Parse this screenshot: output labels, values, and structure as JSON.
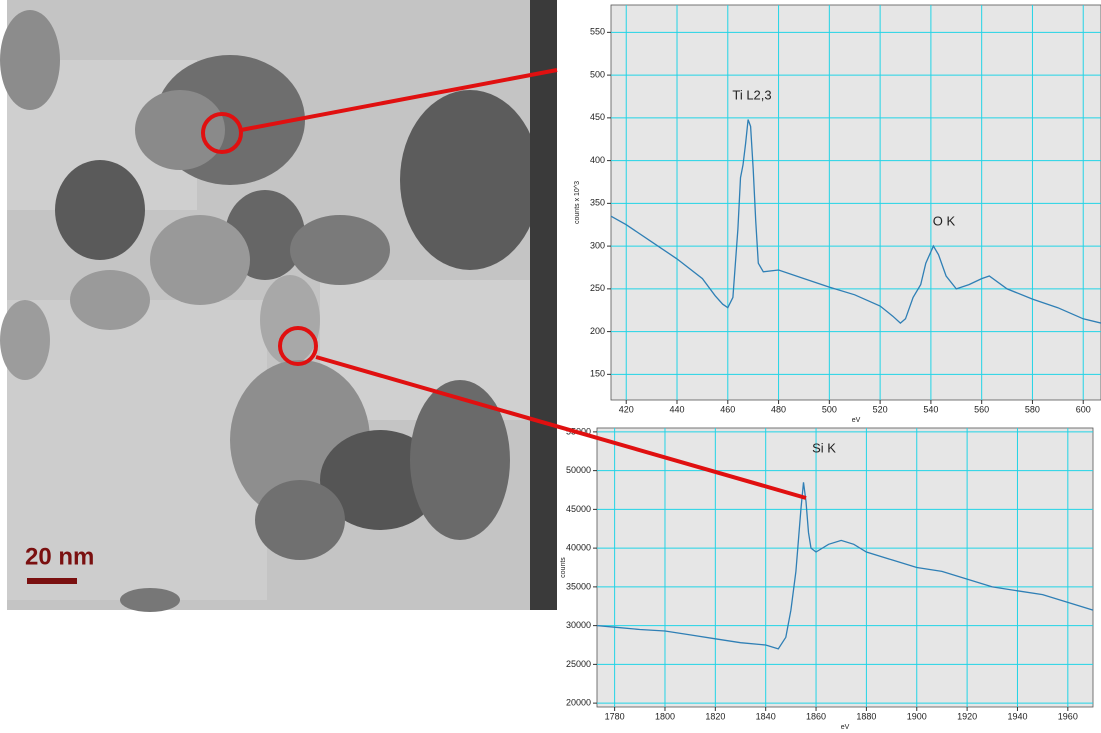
{
  "image": {
    "scale_bar": "20 nm"
  },
  "chart_data": [
    {
      "type": "line",
      "xlabel": "eV",
      "ylabel": "counts x 10^3",
      "annotations": [
        "Ti L2,3",
        "O K"
      ],
      "x": [
        414,
        420,
        430,
        440,
        450,
        455,
        458,
        460,
        462,
        464,
        465,
        466,
        467,
        468,
        469,
        470,
        471,
        472,
        474,
        480,
        490,
        500,
        510,
        520,
        525,
        528,
        530,
        533,
        536,
        538,
        541,
        543,
        546,
        550,
        555,
        560,
        563,
        570,
        580,
        590,
        600,
        607
      ],
      "values": [
        335,
        325,
        305,
        285,
        262,
        242,
        232,
        228,
        240,
        320,
        380,
        395,
        420,
        448,
        440,
        390,
        330,
        280,
        270,
        272,
        262,
        252,
        243,
        230,
        218,
        210,
        215,
        240,
        255,
        280,
        300,
        290,
        265,
        250,
        255,
        262,
        265,
        250,
        238,
        228,
        215,
        210
      ],
      "color": "#2f7fb5",
      "xlim": [
        414,
        607
      ],
      "xticks": [
        420,
        440,
        460,
        480,
        500,
        520,
        540,
        560,
        580,
        600
      ],
      "ylim": [
        120,
        582
      ],
      "yticks": [
        150,
        200,
        250,
        300,
        350,
        400,
        450,
        500,
        550
      ],
      "grid": true
    },
    {
      "type": "line",
      "xlabel": "eV",
      "ylabel": "counts",
      "annotations": [
        "Si K"
      ],
      "x": [
        1773,
        1780,
        1790,
        1800,
        1810,
        1820,
        1830,
        1840,
        1845,
        1848,
        1850,
        1852,
        1854,
        1855,
        1856,
        1857,
        1858,
        1860,
        1865,
        1870,
        1875,
        1880,
        1890,
        1900,
        1910,
        1920,
        1930,
        1940,
        1950,
        1960,
        1970
      ],
      "values": [
        30000,
        29800,
        29500,
        29300,
        28800,
        28300,
        27800,
        27500,
        27000,
        28500,
        32000,
        37000,
        45000,
        48500,
        46000,
        42000,
        40000,
        39500,
        40500,
        41000,
        40500,
        39500,
        38500,
        37500,
        37000,
        36000,
        35000,
        34500,
        34000,
        33000,
        32000
      ],
      "color": "#2f7fb5",
      "xlim": [
        1773,
        1970
      ],
      "xticks": [
        1780,
        1800,
        1820,
        1840,
        1860,
        1880,
        1900,
        1920,
        1940,
        1960
      ],
      "ylim": [
        19500,
        55500
      ],
      "yticks": [
        20000,
        25000,
        30000,
        35000,
        40000,
        45000,
        50000,
        55000
      ],
      "grid": true
    }
  ]
}
